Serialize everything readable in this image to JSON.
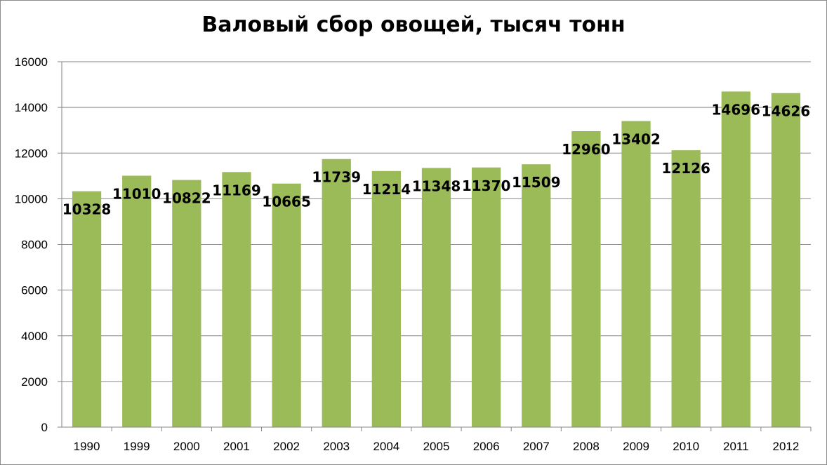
{
  "chart_data": {
    "type": "bar",
    "title": "Валовый сбор овощей, тысяч тонн",
    "categories": [
      "1990",
      "1999",
      "2000",
      "2001",
      "2002",
      "2003",
      "2004",
      "2005",
      "2006",
      "2007",
      "2008",
      "2009",
      "2010",
      "2011",
      "2012"
    ],
    "values": [
      10328,
      11010,
      10822,
      11169,
      10665,
      11739,
      11214,
      11348,
      11370,
      11509,
      12960,
      13402,
      12126,
      14696,
      14626
    ],
    "ylim": [
      0,
      16000
    ],
    "yticks": [
      "0",
      "2000",
      "4000",
      "6000",
      "8000",
      "10000",
      "12000",
      "14000",
      "16000"
    ],
    "grid": true,
    "bar_color": "#9bbb59",
    "legend": "none",
    "xlabel": "",
    "ylabel": ""
  }
}
